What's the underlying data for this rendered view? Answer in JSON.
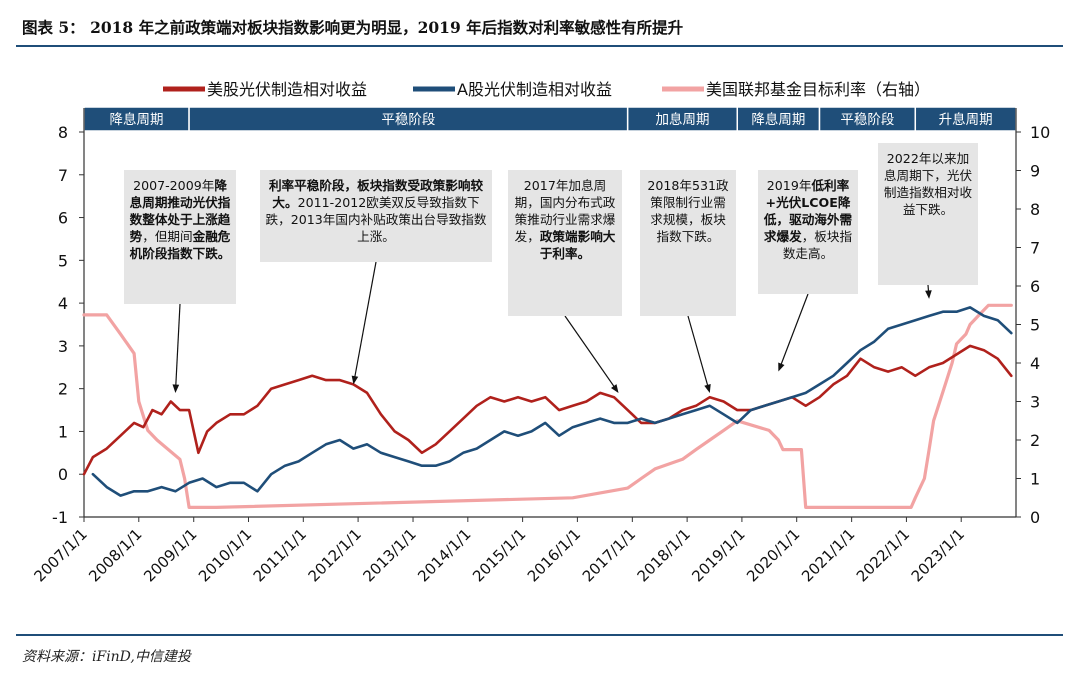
{
  "title": "图表 5： 2018 年之前政策端对板块指数影响更为明显，2019 年后指数对利率敏感性有所提升",
  "source": "资料来源：iFinD,中信建投",
  "chart_data": {
    "type": "line",
    "series": [
      {
        "name": "美股光伏制造相对收益",
        "color": "#b0211c",
        "axis": "left",
        "points": [
          [
            "2007-01-01",
            0.0
          ],
          [
            "2007-03-01",
            0.4
          ],
          [
            "2007-06-01",
            0.6
          ],
          [
            "2007-09-01",
            0.9
          ],
          [
            "2007-12-01",
            1.2
          ],
          [
            "2008-02-01",
            1.1
          ],
          [
            "2008-04-01",
            1.5
          ],
          [
            "2008-06-01",
            1.4
          ],
          [
            "2008-08-01",
            1.7
          ],
          [
            "2008-10-01",
            1.5
          ],
          [
            "2008-12-01",
            1.5
          ],
          [
            "2009-02-01",
            0.5
          ],
          [
            "2009-04-01",
            1.0
          ],
          [
            "2009-06-01",
            1.2
          ],
          [
            "2009-09-01",
            1.4
          ],
          [
            "2009-12-01",
            1.4
          ],
          [
            "2010-03-01",
            1.6
          ],
          [
            "2010-06-01",
            2.0
          ],
          [
            "2010-09-01",
            2.1
          ],
          [
            "2010-12-01",
            2.2
          ],
          [
            "2011-03-01",
            2.3
          ],
          [
            "2011-06-01",
            2.2
          ],
          [
            "2011-09-01",
            2.2
          ],
          [
            "2011-12-01",
            2.1
          ],
          [
            "2012-03-01",
            1.9
          ],
          [
            "2012-06-01",
            1.4
          ],
          [
            "2012-09-01",
            1.0
          ],
          [
            "2012-12-01",
            0.8
          ],
          [
            "2013-03-01",
            0.5
          ],
          [
            "2013-06-01",
            0.7
          ],
          [
            "2013-09-01",
            1.0
          ],
          [
            "2013-12-01",
            1.3
          ],
          [
            "2014-03-01",
            1.6
          ],
          [
            "2014-06-01",
            1.8
          ],
          [
            "2014-09-01",
            1.7
          ],
          [
            "2014-12-01",
            1.8
          ],
          [
            "2015-03-01",
            1.7
          ],
          [
            "2015-06-01",
            1.8
          ],
          [
            "2015-09-01",
            1.5
          ],
          [
            "2015-12-01",
            1.6
          ],
          [
            "2016-03-01",
            1.7
          ],
          [
            "2016-06-01",
            1.9
          ],
          [
            "2016-09-01",
            1.8
          ],
          [
            "2016-12-01",
            1.5
          ],
          [
            "2017-03-01",
            1.2
          ],
          [
            "2017-06-01",
            1.2
          ],
          [
            "2017-09-01",
            1.3
          ],
          [
            "2017-12-01",
            1.5
          ],
          [
            "2018-03-01",
            1.6
          ],
          [
            "2018-06-01",
            1.8
          ],
          [
            "2018-09-01",
            1.7
          ],
          [
            "2018-12-01",
            1.5
          ],
          [
            "2019-03-01",
            1.5
          ],
          [
            "2019-06-01",
            1.6
          ],
          [
            "2019-09-01",
            1.7
          ],
          [
            "2019-12-01",
            1.8
          ],
          [
            "2020-03-01",
            1.6
          ],
          [
            "2020-06-01",
            1.8
          ],
          [
            "2020-09-01",
            2.1
          ],
          [
            "2020-12-01",
            2.3
          ],
          [
            "2021-03-01",
            2.7
          ],
          [
            "2021-06-01",
            2.5
          ],
          [
            "2021-09-01",
            2.4
          ],
          [
            "2021-12-01",
            2.5
          ],
          [
            "2022-03-01",
            2.3
          ],
          [
            "2022-06-01",
            2.5
          ],
          [
            "2022-09-01",
            2.6
          ],
          [
            "2022-12-01",
            2.8
          ],
          [
            "2023-03-01",
            3.0
          ],
          [
            "2023-06-01",
            2.9
          ],
          [
            "2023-09-01",
            2.7
          ],
          [
            "2023-12-01",
            2.3
          ]
        ]
      },
      {
        "name": "A股光伏制造相对收益",
        "color": "#1f4e79",
        "axis": "left",
        "points": [
          [
            "2007-03-01",
            0.0
          ],
          [
            "2007-06-01",
            -0.3
          ],
          [
            "2007-09-01",
            -0.5
          ],
          [
            "2007-12-01",
            -0.4
          ],
          [
            "2008-03-01",
            -0.4
          ],
          [
            "2008-06-01",
            -0.3
          ],
          [
            "2008-09-01",
            -0.4
          ],
          [
            "2008-12-01",
            -0.2
          ],
          [
            "2009-03-01",
            -0.1
          ],
          [
            "2009-06-01",
            -0.3
          ],
          [
            "2009-09-01",
            -0.2
          ],
          [
            "2009-12-01",
            -0.2
          ],
          [
            "2010-03-01",
            -0.4
          ],
          [
            "2010-06-01",
            0.0
          ],
          [
            "2010-09-01",
            0.2
          ],
          [
            "2010-12-01",
            0.3
          ],
          [
            "2011-03-01",
            0.5
          ],
          [
            "2011-06-01",
            0.7
          ],
          [
            "2011-09-01",
            0.8
          ],
          [
            "2011-12-01",
            0.6
          ],
          [
            "2012-03-01",
            0.7
          ],
          [
            "2012-06-01",
            0.5
          ],
          [
            "2012-09-01",
            0.4
          ],
          [
            "2012-12-01",
            0.3
          ],
          [
            "2013-03-01",
            0.2
          ],
          [
            "2013-06-01",
            0.2
          ],
          [
            "2013-09-01",
            0.3
          ],
          [
            "2013-12-01",
            0.5
          ],
          [
            "2014-03-01",
            0.6
          ],
          [
            "2014-06-01",
            0.8
          ],
          [
            "2014-09-01",
            1.0
          ],
          [
            "2014-12-01",
            0.9
          ],
          [
            "2015-03-01",
            1.0
          ],
          [
            "2015-06-01",
            1.2
          ],
          [
            "2015-09-01",
            0.9
          ],
          [
            "2015-12-01",
            1.1
          ],
          [
            "2016-03-01",
            1.2
          ],
          [
            "2016-06-01",
            1.3
          ],
          [
            "2016-09-01",
            1.2
          ],
          [
            "2016-12-01",
            1.2
          ],
          [
            "2017-03-01",
            1.3
          ],
          [
            "2017-06-01",
            1.2
          ],
          [
            "2017-09-01",
            1.3
          ],
          [
            "2017-12-01",
            1.4
          ],
          [
            "2018-03-01",
            1.5
          ],
          [
            "2018-06-01",
            1.6
          ],
          [
            "2018-09-01",
            1.4
          ],
          [
            "2018-12-01",
            1.2
          ],
          [
            "2019-03-01",
            1.5
          ],
          [
            "2019-06-01",
            1.6
          ],
          [
            "2019-09-01",
            1.7
          ],
          [
            "2019-12-01",
            1.8
          ],
          [
            "2020-03-01",
            1.9
          ],
          [
            "2020-06-01",
            2.1
          ],
          [
            "2020-09-01",
            2.3
          ],
          [
            "2020-12-01",
            2.6
          ],
          [
            "2021-03-01",
            2.9
          ],
          [
            "2021-06-01",
            3.1
          ],
          [
            "2021-09-01",
            3.4
          ],
          [
            "2021-12-01",
            3.5
          ],
          [
            "2022-03-01",
            3.6
          ],
          [
            "2022-06-01",
            3.7
          ],
          [
            "2022-09-01",
            3.8
          ],
          [
            "2022-12-01",
            3.8
          ],
          [
            "2023-03-01",
            3.9
          ],
          [
            "2023-06-01",
            3.7
          ],
          [
            "2023-09-01",
            3.6
          ],
          [
            "2023-12-01",
            3.3
          ]
        ]
      },
      {
        "name": "美国联邦基金目标利率（右轴）",
        "color": "#f2a3a3",
        "axis": "right",
        "points": [
          [
            "2007-01-01",
            5.25
          ],
          [
            "2007-06-01",
            5.25
          ],
          [
            "2007-09-01",
            4.75
          ],
          [
            "2007-12-01",
            4.25
          ],
          [
            "2008-01-01",
            3.0
          ],
          [
            "2008-03-01",
            2.25
          ],
          [
            "2008-05-01",
            2.0
          ],
          [
            "2008-10-01",
            1.5
          ],
          [
            "2008-11-01",
            1.0
          ],
          [
            "2008-12-01",
            0.25
          ],
          [
            "2009-06-01",
            0.25
          ],
          [
            "2015-12-01",
            0.5
          ],
          [
            "2016-12-01",
            0.75
          ],
          [
            "2017-03-01",
            1.0
          ],
          [
            "2017-06-01",
            1.25
          ],
          [
            "2017-12-01",
            1.5
          ],
          [
            "2018-03-01",
            1.75
          ],
          [
            "2018-06-01",
            2.0
          ],
          [
            "2018-09-01",
            2.25
          ],
          [
            "2018-12-01",
            2.5
          ],
          [
            "2019-07-01",
            2.25
          ],
          [
            "2019-09-01",
            2.0
          ],
          [
            "2019-10-01",
            1.75
          ],
          [
            "2020-02-01",
            1.75
          ],
          [
            "2020-03-01",
            0.25
          ],
          [
            "2022-02-01",
            0.25
          ],
          [
            "2022-03-01",
            0.5
          ],
          [
            "2022-05-01",
            1.0
          ],
          [
            "2022-06-01",
            1.75
          ],
          [
            "2022-07-01",
            2.5
          ],
          [
            "2022-09-01",
            3.25
          ],
          [
            "2022-11-01",
            4.0
          ],
          [
            "2022-12-01",
            4.5
          ],
          [
            "2023-02-01",
            4.75
          ],
          [
            "2023-03-01",
            5.0
          ],
          [
            "2023-05-01",
            5.25
          ],
          [
            "2023-07-01",
            5.5
          ],
          [
            "2023-12-01",
            5.5
          ]
        ]
      }
    ],
    "x_range": [
      "2007-01-01",
      "2024-01-01"
    ],
    "x_ticks": [
      "2007/1/1",
      "2008/1/1",
      "2009/1/1",
      "2010/1/1",
      "2011/1/1",
      "2012/1/1",
      "2013/1/1",
      "2014/1/1",
      "2015/1/1",
      "2016/1/1",
      "2017/1/1",
      "2018/1/1",
      "2019/1/1",
      "2020/1/1",
      "2021/1/1",
      "2022/1/1",
      "2023/1/1"
    ],
    "y_left": {
      "range": [
        -1,
        8
      ],
      "ticks": [
        -1,
        0,
        1,
        2,
        3,
        4,
        5,
        6,
        7,
        8
      ]
    },
    "y_right": {
      "range": [
        0,
        10
      ],
      "ticks": [
        0,
        1,
        2,
        3,
        4,
        5,
        6,
        7,
        8,
        9,
        10
      ]
    },
    "grid": false,
    "legend": {
      "placement": "top",
      "items": [
        "美股光伏制造相对收益",
        "A股光伏制造相对收益",
        "美国联邦基金目标利率（右轴）"
      ]
    },
    "periods": [
      {
        "label": "降息周期",
        "start": "2007-01-01",
        "end": "2008-12-01"
      },
      {
        "label": "平稳阶段",
        "start": "2008-12-01",
        "end": "2016-12-01"
      },
      {
        "label": "加息周期",
        "start": "2016-12-01",
        "end": "2018-12-01"
      },
      {
        "label": "降息周期",
        "start": "2018-12-01",
        "end": "2020-06-01"
      },
      {
        "label": "平稳阶段",
        "start": "2020-06-01",
        "end": "2022-03-01"
      },
      {
        "label": "升息周期",
        "start": "2022-03-01",
        "end": "2024-01-01"
      }
    ],
    "annotations": [
      {
        "segments": [
          [
            "2007-2009年",
            false
          ],
          [
            "降息周期推动光伏指数整体处于上涨趋势",
            true
          ],
          [
            "，但期间",
            false
          ],
          [
            "金融危机阶段指数下跌。",
            true
          ]
        ],
        "target": [
          "2008-09-01",
          1.9
        ]
      },
      {
        "segments": [
          [
            "利率平稳阶段，板块指数受政策影响较大。",
            true
          ],
          [
            "2011-2012欧美双反导致指数下跌，2013年国内补贴政策出台导致指数上涨。",
            false
          ]
        ],
        "target": [
          "2011-12-01",
          2.1
        ]
      },
      {
        "segments": [
          [
            "2017年加息周期，国内分布式政策推动行业需求爆发，",
            false
          ],
          [
            "政策端影响大于利率。",
            true
          ]
        ],
        "target": [
          "2016-10-01",
          1.9
        ]
      },
      {
        "segments": [
          [
            "2018年531政策限制行业需求规模，板块指数下跌。",
            false
          ]
        ],
        "target": [
          "2018-06-01",
          1.9
        ]
      },
      {
        "segments": [
          [
            "2019年",
            false
          ],
          [
            "低利率+光伏LCOE降低，驱动海外需求爆发",
            true
          ],
          [
            "，板块指数走高。",
            false
          ]
        ],
        "target": [
          "2019-09-01",
          2.4
        ]
      },
      {
        "segments": [
          [
            "2022年以来加息周期下，光伏制造指数相对收益下跌。",
            false
          ]
        ],
        "target": [
          "2022-06-01",
          4.1
        ]
      }
    ]
  }
}
